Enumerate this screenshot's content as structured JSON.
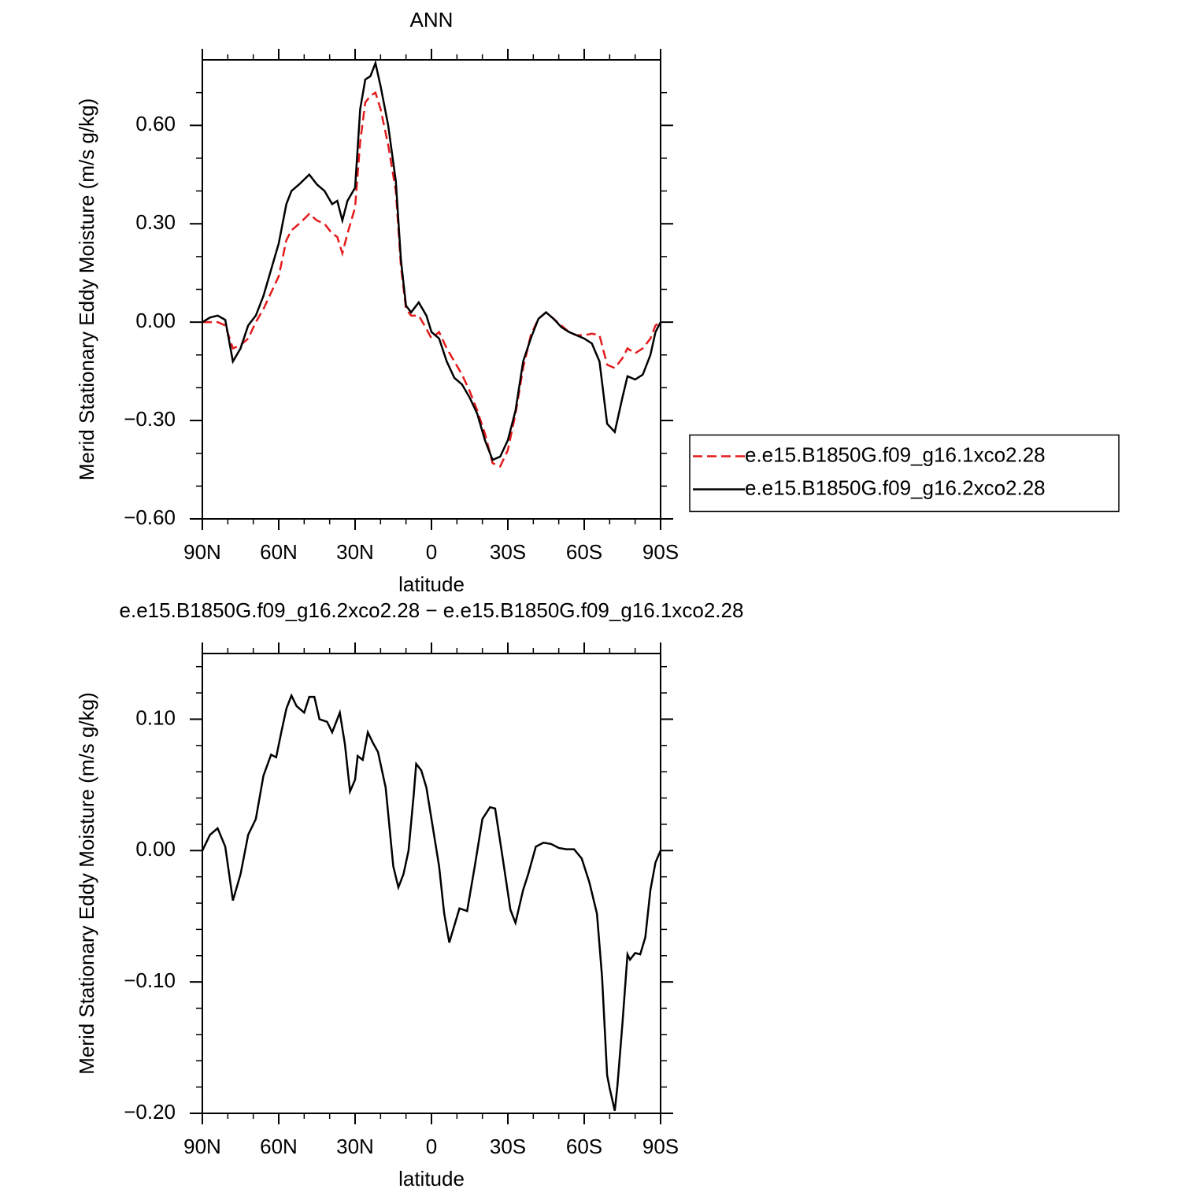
{
  "chart_data": [
    {
      "type": "line",
      "title": "ANN",
      "xlabel": "latitude",
      "ylabel": "Merid Stationary Eddy Moisture (m/s g/kg)",
      "xlim": [
        90,
        -90
      ],
      "ylim": [
        -0.6,
        0.8
      ],
      "xticks": [
        {
          "value": 90,
          "label": "90N"
        },
        {
          "value": 60,
          "label": "60N"
        },
        {
          "value": 30,
          "label": "30N"
        },
        0,
        {
          "value": -30,
          "label": "30S"
        },
        {
          "value": -60,
          "label": "60S"
        },
        {
          "value": -90,
          "label": "90S"
        }
      ],
      "yticks": [
        {
          "value": -0.6,
          "label": "−0.60"
        },
        {
          "value": -0.3,
          "label": "−0.30"
        },
        {
          "value": 0,
          "label": "0.00"
        },
        {
          "value": 0.3,
          "label": "0.30"
        },
        {
          "value": 0.6,
          "label": "0.60"
        }
      ],
      "xminorticks": [
        80,
        70,
        50,
        40,
        20,
        10,
        -10,
        -20,
        -40,
        -50,
        -70,
        -80
      ],
      "yminorticks": [
        -0.5,
        -0.4,
        -0.2,
        -0.1,
        0.1,
        0.2,
        0.4,
        0.5,
        0.7
      ],
      "legend": "right",
      "x": [
        90,
        87,
        84,
        81,
        78,
        75,
        72,
        69,
        66,
        63,
        60,
        57,
        55,
        52,
        48,
        45,
        42,
        39,
        37,
        35,
        33,
        30,
        28,
        26,
        24,
        22,
        20,
        17,
        14,
        12,
        10,
        8,
        5,
        2,
        0,
        -3,
        -6,
        -9,
        -12,
        -15,
        -18,
        -21,
        -24,
        -27,
        -30,
        -33,
        -36,
        -39,
        -42,
        -45,
        -48,
        -51,
        -54,
        -57,
        -60,
        -63,
        -66,
        -69,
        -72,
        -75,
        -77,
        -80,
        -83,
        -86,
        -88,
        -90
      ],
      "series": [
        {
          "name": "e.e15.B1850G.f09_g16.1xco2.28",
          "color": "#e41a1c",
          "linestyle": "dashed",
          "values": [
            0,
            0,
            0,
            -0.01,
            -0.08,
            -0.07,
            -0.05,
            0,
            0.04,
            0.09,
            0.14,
            0.25,
            0.28,
            0.3,
            0.33,
            0.31,
            0.3,
            0.27,
            0.26,
            0.21,
            0.27,
            0.35,
            0.55,
            0.67,
            0.69,
            0.7,
            0.65,
            0.54,
            0.4,
            0.17,
            0.04,
            0.02,
            0.02,
            -0.02,
            -0.05,
            -0.03,
            -0.08,
            -0.12,
            -0.16,
            -0.21,
            -0.27,
            -0.34,
            -0.43,
            -0.44,
            -0.39,
            -0.28,
            -0.14,
            -0.04,
            0.01,
            0.03,
            0.01,
            -0.01,
            -0.03,
            -0.04,
            -0.04,
            -0.035,
            -0.04,
            -0.13,
            -0.14,
            -0.11,
            -0.08,
            -0.095,
            -0.08,
            -0.05,
            -0.01,
            0
          ]
        },
        {
          "name": "e.e15.B1850G.f09_g16.2xco2.28",
          "color": "#000000",
          "linestyle": "solid",
          "values": [
            0,
            0.014,
            0.02,
            0.007,
            -0.12,
            -0.08,
            -0.01,
            0.02,
            0.08,
            0.16,
            0.24,
            0.36,
            0.4,
            0.42,
            0.45,
            0.42,
            0.4,
            0.36,
            0.37,
            0.31,
            0.37,
            0.41,
            0.65,
            0.74,
            0.75,
            0.79,
            0.72,
            0.6,
            0.43,
            0.19,
            0.05,
            0.03,
            0.06,
            0.02,
            -0.03,
            -0.05,
            -0.12,
            -0.17,
            -0.19,
            -0.23,
            -0.28,
            -0.36,
            -0.42,
            -0.41,
            -0.36,
            -0.27,
            -0.12,
            -0.05,
            0.01,
            0.03,
            0.01,
            -0.015,
            -0.03,
            -0.04,
            -0.05,
            -0.065,
            -0.12,
            -0.31,
            -0.335,
            -0.23,
            -0.165,
            -0.175,
            -0.16,
            -0.1,
            -0.03,
            0
          ]
        }
      ]
    },
    {
      "type": "line",
      "title": "e.e15.B1850G.f09_g16.2xco2.28 − e.e15.B1850G.f09_g16.1xco2.28",
      "xlabel": "latitude",
      "ylabel": "Merid Stationary Eddy Moisture (m/s g/kg)",
      "xlim": [
        90,
        -90
      ],
      "ylim": [
        -0.2,
        0.15
      ],
      "xticks": [
        {
          "value": 90,
          "label": "90N"
        },
        {
          "value": 60,
          "label": "60N"
        },
        {
          "value": 30,
          "label": "30N"
        },
        0,
        {
          "value": -30,
          "label": "30S"
        },
        {
          "value": -60,
          "label": "60S"
        },
        {
          "value": -90,
          "label": "90S"
        }
      ],
      "yticks": [
        {
          "value": -0.2,
          "label": "−0.20"
        },
        {
          "value": -0.1,
          "label": "−0.10"
        },
        {
          "value": 0,
          "label": "0.00"
        },
        {
          "value": 0.1,
          "label": "0.10"
        }
      ],
      "xminorticks": [
        80,
        70,
        50,
        40,
        20,
        10,
        -10,
        -20,
        -40,
        -50,
        -70,
        -80
      ],
      "yminorticks": [
        -0.18,
        -0.16,
        -0.14,
        -0.12,
        -0.08,
        -0.06,
        -0.04,
        -0.02,
        0.02,
        0.04,
        0.06,
        0.08,
        0.12,
        0.14
      ],
      "x": [
        90,
        87,
        84,
        81,
        78,
        75,
        72,
        69,
        66,
        63,
        61,
        59,
        57,
        55,
        53,
        50,
        48,
        46,
        44,
        41,
        39,
        36,
        34,
        32,
        30,
        29,
        27,
        25,
        23,
        21,
        18,
        15,
        13,
        11,
        9,
        7,
        6,
        4,
        2,
        0,
        -3,
        -5,
        -7,
        -9,
        -11,
        -14,
        -17,
        -20,
        -23,
        -25,
        -28,
        -31,
        -33,
        -36,
        -38,
        -41,
        -44,
        -47,
        -50,
        -53,
        -56,
        -59,
        -62,
        -65,
        -67,
        -69,
        -70,
        -72,
        -73,
        -75,
        -77,
        -78,
        -80,
        -82,
        -84,
        -86,
        -88,
        -90
      ],
      "series": [
        {
          "color": "#000000",
          "linestyle": "solid",
          "values": [
            0,
            0.012,
            0.017,
            0.003,
            -0.038,
            -0.018,
            0.012,
            0.024,
            0.057,
            0.073,
            0.071,
            0.09,
            0.108,
            0.118,
            0.11,
            0.105,
            0.117,
            0.117,
            0.1,
            0.098,
            0.09,
            0.105,
            0.081,
            0.045,
            0.054,
            0.072,
            0.069,
            0.09,
            0.082,
            0.075,
            0.048,
            -0.012,
            -0.028,
            -0.018,
            0,
            0.042,
            0.066,
            0.061,
            0.048,
            0.024,
            -0.012,
            -0.048,
            -0.07,
            -0.057,
            -0.044,
            -0.046,
            -0.012,
            0.024,
            0.033,
            0.032,
            -0.006,
            -0.045,
            -0.055,
            -0.03,
            -0.018,
            0.003,
            0.006,
            0.005,
            0.002,
            0.001,
            0.001,
            -0.006,
            -0.024,
            -0.048,
            -0.096,
            -0.171,
            -0.181,
            -0.198,
            -0.18,
            -0.132,
            -0.079,
            -0.083,
            -0.078,
            -0.079,
            -0.066,
            -0.03,
            -0.009,
            0
          ]
        }
      ]
    }
  ]
}
